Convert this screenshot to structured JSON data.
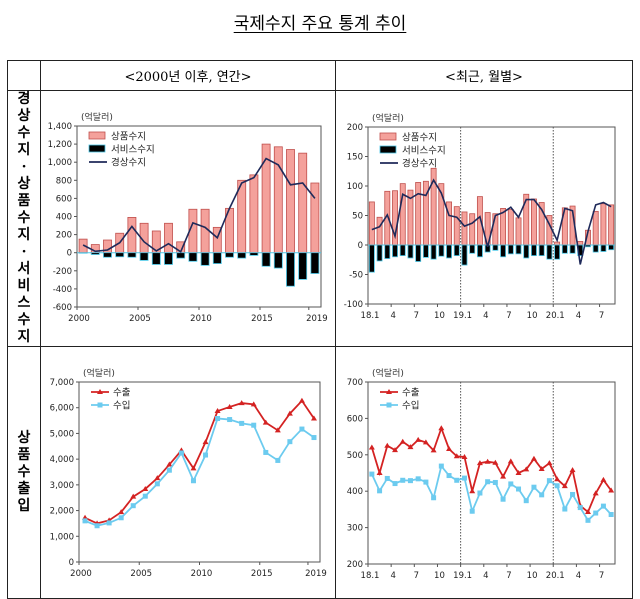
{
  "title": "국제수지 주요 통계 추이",
  "table": {
    "col_headers": [
      "<2000년 이후, 연간>",
      "<최근, 월별>"
    ],
    "row_labels": [
      "경상수지·상품수지·서비스수지",
      "상품수출입"
    ]
  },
  "chart_data": [
    {
      "type": "bar",
      "unit": "(억달러)",
      "categories": [
        "2000",
        "2001",
        "2002",
        "2003",
        "2004",
        "2005",
        "2006",
        "2007",
        "2008",
        "2009",
        "2010",
        "2011",
        "2012",
        "2013",
        "2014",
        "2015",
        "2016",
        "2017",
        "2018",
        "2019"
      ],
      "xtick_labels": [
        "2000",
        "",
        "",
        "",
        "",
        "2005",
        "",
        "",
        "",
        "",
        "2010",
        "",
        "",
        "",
        "",
        "2015",
        "",
        "",
        "",
        "2019"
      ],
      "ylim": [
        -600,
        1400
      ],
      "yticks": [
        "-600",
        "-400",
        "-200",
        "0",
        "200",
        "400",
        "600",
        "800",
        "1,000",
        "1,200",
        "1,400"
      ],
      "legend": "top-left",
      "series": [
        {
          "name": "상품수지",
          "kind": "bar",
          "color": "#f4a19b",
          "values": [
            150,
            90,
            140,
            215,
            390,
            325,
            240,
            325,
            120,
            480,
            480,
            280,
            490,
            800,
            860,
            1200,
            1170,
            1140,
            1100,
            770
          ]
        },
        {
          "name": "서비스수지",
          "kind": "bar",
          "color": "#000000",
          "values": [
            -5,
            -20,
            -50,
            -45,
            -50,
            -85,
            -130,
            -130,
            -60,
            -95,
            -140,
            -120,
            -50,
            -60,
            -30,
            -150,
            -170,
            -370,
            -295,
            -230
          ]
        },
        {
          "name": "경상수지",
          "kind": "line",
          "color": "#1f2a5a",
          "values": [
            85,
            15,
            30,
            110,
            290,
            120,
            20,
            100,
            10,
            330,
            280,
            165,
            490,
            770,
            830,
            1040,
            970,
            750,
            770,
            600
          ]
        }
      ]
    },
    {
      "type": "bar",
      "unit": "(억달러)",
      "categories": [
        "18.1",
        "18.2",
        "18.3",
        "18.4",
        "18.5",
        "18.6",
        "18.7",
        "18.8",
        "18.9",
        "18.10",
        "18.11",
        "18.12",
        "19.1",
        "19.2",
        "19.3",
        "19.4",
        "19.5",
        "19.6",
        "19.7",
        "19.8",
        "19.9",
        "19.10",
        "19.11",
        "19.12",
        "20.1",
        "20.2",
        "20.3",
        "20.4",
        "20.5",
        "20.6",
        "20.7",
        "20.8"
      ],
      "xtick_labels": [
        "18.1",
        "",
        "",
        "4",
        "",
        "",
        "7",
        "",
        "",
        "10",
        "",
        "",
        "19.1",
        "",
        "",
        "4",
        "",
        "",
        "7",
        "",
        "",
        "10",
        "",
        "",
        "20.1",
        "",
        "",
        "4",
        "",
        "",
        "7",
        ""
      ],
      "year_dividers": [
        "19.1",
        "20.1"
      ],
      "ylim": [
        -100,
        200
      ],
      "yticks": [
        "-100",
        "-50",
        "0",
        "50",
        "100",
        "150",
        "200"
      ],
      "legend": "top-left",
      "series": [
        {
          "name": "상품수지",
          "kind": "bar",
          "color": "#f4a19b",
          "values": [
            73,
            47,
            91,
            92,
            104,
            93,
            106,
            108,
            130,
            104,
            73,
            65,
            56,
            53,
            82,
            55,
            53,
            62,
            60,
            46,
            86,
            78,
            72,
            50,
            5,
            63,
            66,
            6,
            25,
            57,
            70,
            68
          ]
        },
        {
          "name": "서비스수지",
          "kind": "bar",
          "color": "#000000",
          "values": [
            -46,
            -27,
            -23,
            -20,
            -18,
            -22,
            -28,
            -21,
            -24,
            -19,
            -22,
            -18,
            -34,
            -14,
            -20,
            -12,
            -9,
            -20,
            -15,
            -15,
            -22,
            -18,
            -18,
            -24,
            -24,
            -14,
            -14,
            -18,
            -3,
            -12,
            -11,
            -8
          ]
        },
        {
          "name": "경상수지",
          "kind": "line",
          "color": "#1f2a5a",
          "values": [
            26,
            31,
            51,
            15,
            86,
            79,
            87,
            84,
            110,
            88,
            50,
            47,
            32,
            37,
            48,
            -3,
            50,
            55,
            64,
            47,
            77,
            77,
            60,
            35,
            8,
            62,
            58,
            -33,
            23,
            68,
            72,
            65
          ]
        }
      ]
    },
    {
      "type": "line",
      "unit": "(억달러)",
      "categories": [
        "2000",
        "2001",
        "2002",
        "2003",
        "2004",
        "2005",
        "2006",
        "2007",
        "2008",
        "2009",
        "2010",
        "2011",
        "2012",
        "2013",
        "2014",
        "2015",
        "2016",
        "2017",
        "2018",
        "2019"
      ],
      "xtick_labels": [
        "2000",
        "",
        "",
        "",
        "",
        "2005",
        "",
        "",
        "",
        "",
        "2010",
        "",
        "",
        "",
        "",
        "2015",
        "",
        "",
        "",
        "2019"
      ],
      "ylim": [
        0,
        7000
      ],
      "yticks": [
        "0",
        "1,000",
        "2,000",
        "3,000",
        "4,000",
        "5,000",
        "6,000",
        "7,000"
      ],
      "legend": "top-left",
      "series": [
        {
          "name": "수출",
          "kind": "line",
          "marker": "triangle",
          "color": "#d42222",
          "values": [
            1720,
            1500,
            1620,
            1940,
            2540,
            2840,
            3260,
            3790,
            4340,
            3640,
            4660,
            5870,
            6030,
            6180,
            6130,
            5420,
            5120,
            5770,
            6270,
            5580
          ]
        },
        {
          "name": "수입",
          "kind": "line",
          "marker": "square",
          "color": "#6ccbef",
          "values": [
            1600,
            1410,
            1520,
            1720,
            2190,
            2560,
            3040,
            3570,
            4240,
            3160,
            4160,
            5580,
            5540,
            5390,
            5320,
            4260,
            3950,
            4680,
            5170,
            4840
          ]
        }
      ]
    },
    {
      "type": "line",
      "unit": "(억달러)",
      "categories": [
        "18.1",
        "18.2",
        "18.3",
        "18.4",
        "18.5",
        "18.6",
        "18.7",
        "18.8",
        "18.9",
        "18.10",
        "18.11",
        "18.12",
        "19.1",
        "19.2",
        "19.3",
        "19.4",
        "19.5",
        "19.6",
        "19.7",
        "19.8",
        "19.9",
        "19.10",
        "19.11",
        "19.12",
        "20.1",
        "20.2",
        "20.3",
        "20.4",
        "20.5",
        "20.6",
        "20.7",
        "20.8"
      ],
      "xtick_labels": [
        "18.1",
        "",
        "",
        "4",
        "",
        "",
        "7",
        "",
        "",
        "10",
        "",
        "",
        "19.1",
        "",
        "",
        "4",
        "",
        "",
        "7",
        "",
        "",
        "10",
        "",
        "",
        "20.1",
        "",
        "",
        "4",
        "",
        "",
        "7",
        ""
      ],
      "year_dividers": [
        "19.1",
        "20.1"
      ],
      "ylim": [
        200,
        700
      ],
      "yticks": [
        "200",
        "300",
        "400",
        "500",
        "600",
        "700"
      ],
      "legend": "top-left",
      "series": [
        {
          "name": "수출",
          "kind": "line",
          "marker": "triangle",
          "color": "#d42222",
          "values": [
            520,
            450,
            525,
            513,
            536,
            521,
            541,
            534,
            512,
            573,
            516,
            496,
            494,
            400,
            477,
            481,
            478,
            440,
            482,
            450,
            460,
            489,
            461,
            477,
            433,
            414,
            458,
            360,
            343,
            394,
            431,
            402
          ]
        },
        {
          "name": "수입",
          "kind": "line",
          "marker": "square",
          "color": "#6ccbef",
          "values": [
            447,
            401,
            435,
            421,
            430,
            429,
            434,
            425,
            382,
            469,
            443,
            430,
            436,
            345,
            395,
            426,
            424,
            378,
            420,
            406,
            374,
            411,
            390,
            429,
            415,
            351,
            391,
            355,
            320,
            340,
            359,
            336
          ]
        }
      ]
    }
  ]
}
